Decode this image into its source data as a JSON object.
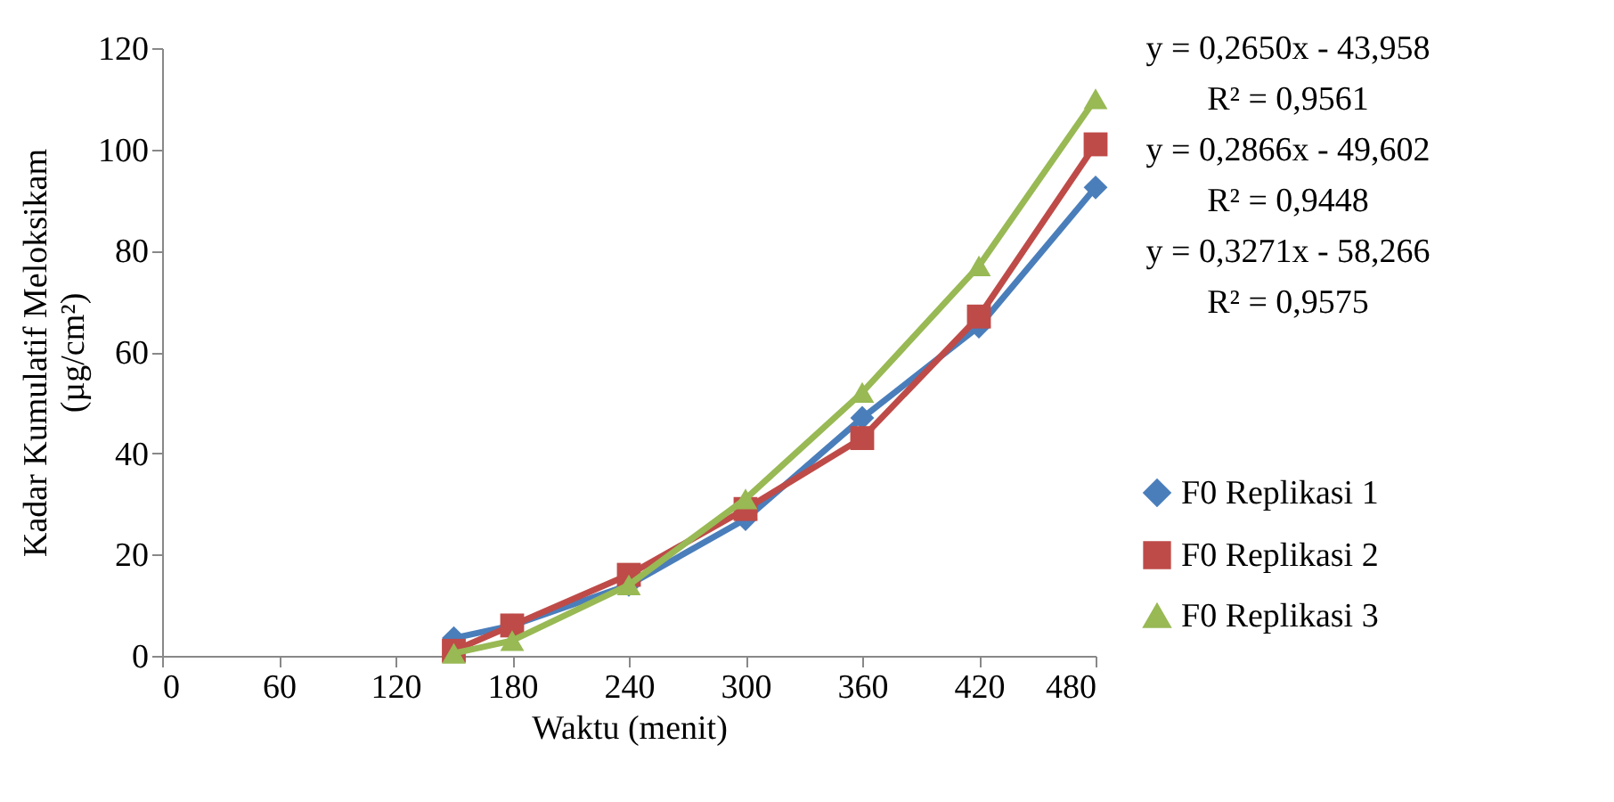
{
  "chart_data": {
    "type": "line",
    "xlabel": "Waktu (menit)",
    "ylabel": "Kadar Kumulatif Meloksikam (µg/cm²)",
    "x": [
      150,
      180,
      240,
      300,
      360,
      420,
      480
    ],
    "series": [
      {
        "name": "F0 Replikasi 1",
        "color": "#4a7ebb",
        "marker": "diamond",
        "values": [
          3.5,
          6,
          14,
          27,
          47,
          65,
          92.5
        ]
      },
      {
        "name": "F0 Replikasi 2",
        "color": "#be4b48",
        "marker": "square",
        "values": [
          1,
          6,
          16,
          29,
          43,
          67,
          101
        ]
      },
      {
        "name": "F0 Replikasi 3",
        "color": "#98b954",
        "marker": "triangle",
        "values": [
          0.5,
          3,
          14,
          31,
          52,
          77,
          110
        ]
      }
    ],
    "xlim": [
      0,
      480
    ],
    "xticks": [
      0,
      60,
      120,
      180,
      240,
      300,
      360,
      420,
      480
    ],
    "ylim": [
      0,
      120
    ],
    "yticks": [
      0,
      20,
      40,
      60,
      80,
      100,
      120
    ],
    "grid": false,
    "legend": "right",
    "line_style": "solid",
    "annotations": [
      "y = 0,2650x - 43,958",
      "R² = 0,9561",
      "y = 0,2866x - 49,602",
      "R² = 0,9448",
      "y = 0,3271x - 58,266",
      "R² = 0,9575"
    ]
  }
}
